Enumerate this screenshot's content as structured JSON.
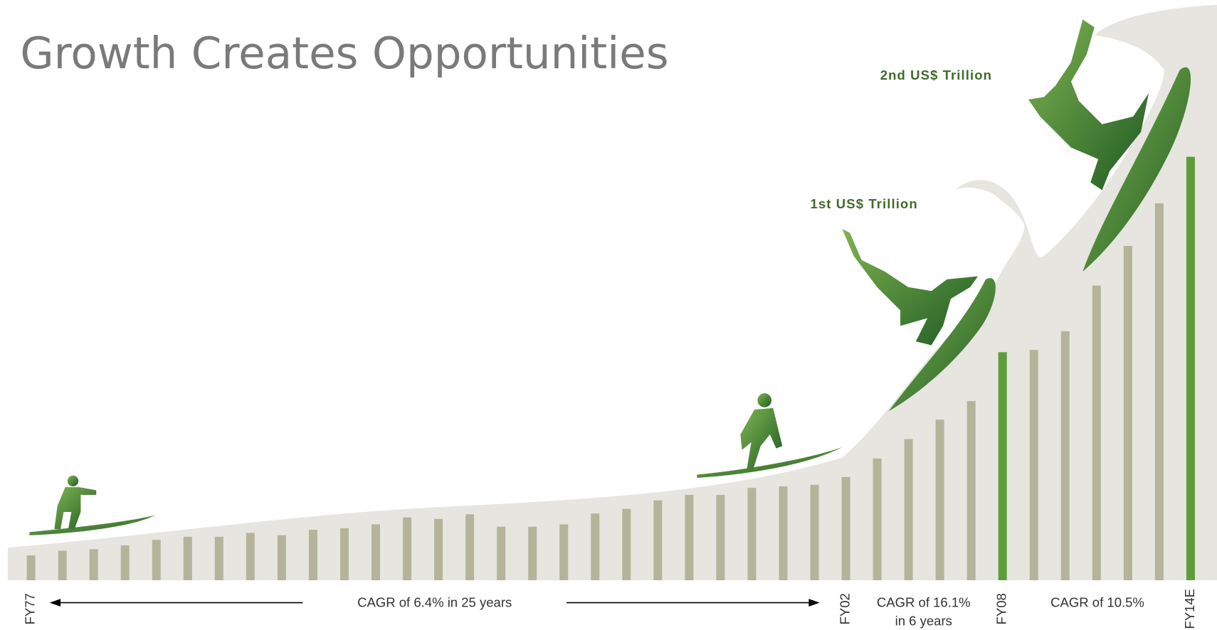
{
  "chart_data": {
    "type": "bar",
    "title": "Growth Creates Opportunities",
    "categories": [
      "FY77",
      null,
      null,
      null,
      null,
      null,
      null,
      null,
      null,
      null,
      null,
      null,
      null,
      null,
      null,
      null,
      null,
      null,
      null,
      null,
      null,
      null,
      null,
      null,
      null,
      null,
      "FY02",
      null,
      null,
      null,
      null,
      "FY08",
      null,
      null,
      null,
      null,
      null,
      "FY14E"
    ],
    "values": [
      32,
      38,
      40,
      45,
      52,
      56,
      56,
      61,
      58,
      65,
      67,
      72,
      81,
      79,
      85,
      69,
      69,
      72,
      86,
      92,
      103,
      110,
      110,
      119,
      121,
      123,
      133,
      157,
      182,
      207,
      231,
      294,
      297,
      321,
      380,
      431,
      486,
      546
    ],
    "color": "#b5b49a",
    "highlight_color": "#5e9c3c",
    "highlights": [
      "FY08",
      "FY14E"
    ],
    "ylim": [
      0,
      560
    ],
    "annotations": [
      "2nd US$ Trillion",
      "1st US$ Trillion",
      "CAGR of 6.4% in 25 years",
      "CAGR of 16.1%",
      "in 6 years",
      "CAGR of 10.5%"
    ]
  }
}
